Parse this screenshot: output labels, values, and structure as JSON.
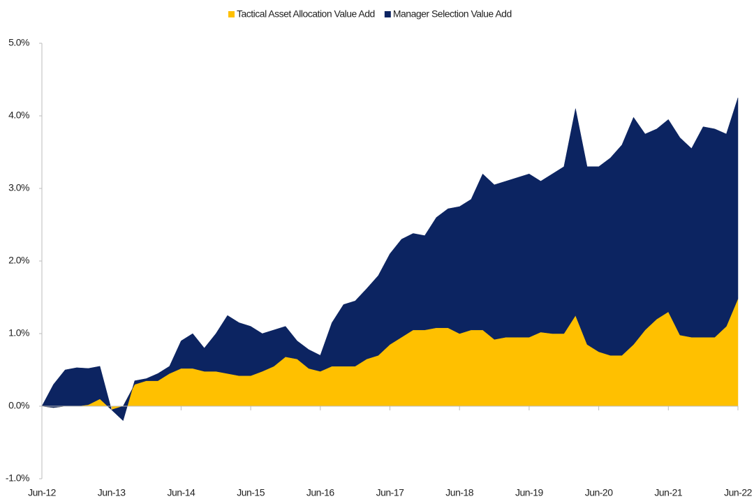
{
  "chart_data": {
    "type": "stacked_area",
    "categories": [
      "Jun-12",
      null,
      null,
      null,
      null,
      null,
      "Jun-13",
      null,
      null,
      null,
      null,
      null,
      "Jun-14",
      null,
      null,
      null,
      null,
      null,
      "Jun-15",
      null,
      null,
      null,
      null,
      null,
      "Jun-16",
      null,
      null,
      null,
      null,
      null,
      "Jun-17",
      null,
      null,
      null,
      null,
      null,
      "Jun-18",
      null,
      null,
      null,
      null,
      null,
      "Jun-19",
      null,
      null,
      null,
      null,
      null,
      "Jun-20",
      null,
      null,
      null,
      null,
      null,
      "Jun-21",
      null,
      null,
      null,
      null,
      null,
      "Jun-22"
    ],
    "series": [
      {
        "name": "Tactical Asset Allocation Value Add",
        "color": "#ffc000",
        "values": [
          0,
          -0.02,
          0,
          0,
          0.02,
          0.1,
          -0.05,
          0,
          0.3,
          0.35,
          0.35,
          0.45,
          0.52,
          0.52,
          0.48,
          0.48,
          0.45,
          0.42,
          0.42,
          0.48,
          0.55,
          0.68,
          0.65,
          0.52,
          0.48,
          0.55,
          0.55,
          0.55,
          0.65,
          0.7,
          0.85,
          0.95,
          1.05,
          1.05,
          1.08,
          1.08,
          1.0,
          1.05,
          1.05,
          0.92,
          0.95,
          0.95,
          0.95,
          1.02,
          1.0,
          1.0,
          1.25,
          0.85,
          0.75,
          0.7,
          0.7,
          0.85,
          1.05,
          1.2,
          1.3,
          0.98,
          0.95,
          0.95,
          0.95,
          1.1,
          1.48
        ]
      },
      {
        "name": "Manager Selection Value Add",
        "color": "#0c2461",
        "values": [
          0,
          0.32,
          0.5,
          0.53,
          0.5,
          0.45,
          0,
          -0.2,
          0.05,
          0.03,
          0.1,
          0.1,
          0.38,
          0.48,
          0.32,
          0.52,
          0.8,
          0.73,
          0.68,
          0.52,
          0.5,
          0.42,
          0.25,
          0.26,
          0.22,
          0.6,
          0.85,
          0.9,
          0.97,
          1.1,
          1.25,
          1.35,
          1.33,
          1.3,
          1.52,
          1.64,
          1.75,
          1.8,
          2.15,
          2.13,
          2.15,
          2.2,
          2.25,
          2.08,
          2.2,
          2.3,
          2.85,
          2.45,
          2.55,
          2.72,
          2.9,
          3.13,
          2.7,
          2.62,
          2.65,
          2.72,
          2.6,
          2.9,
          2.87,
          2.65,
          2.77
        ]
      }
    ],
    "ylim": [
      -1,
      5
    ],
    "yticks": [
      {
        "value": -1,
        "label": "-1.0%"
      },
      {
        "value": 0,
        "label": "0.0%"
      },
      {
        "value": 1,
        "label": "1.0%"
      },
      {
        "value": 2,
        "label": "2.0%"
      },
      {
        "value": 3,
        "label": "3.0%"
      },
      {
        "value": 4,
        "label": "4.0%"
      },
      {
        "value": 5,
        "label": "5.0%"
      }
    ],
    "legend": "top"
  }
}
